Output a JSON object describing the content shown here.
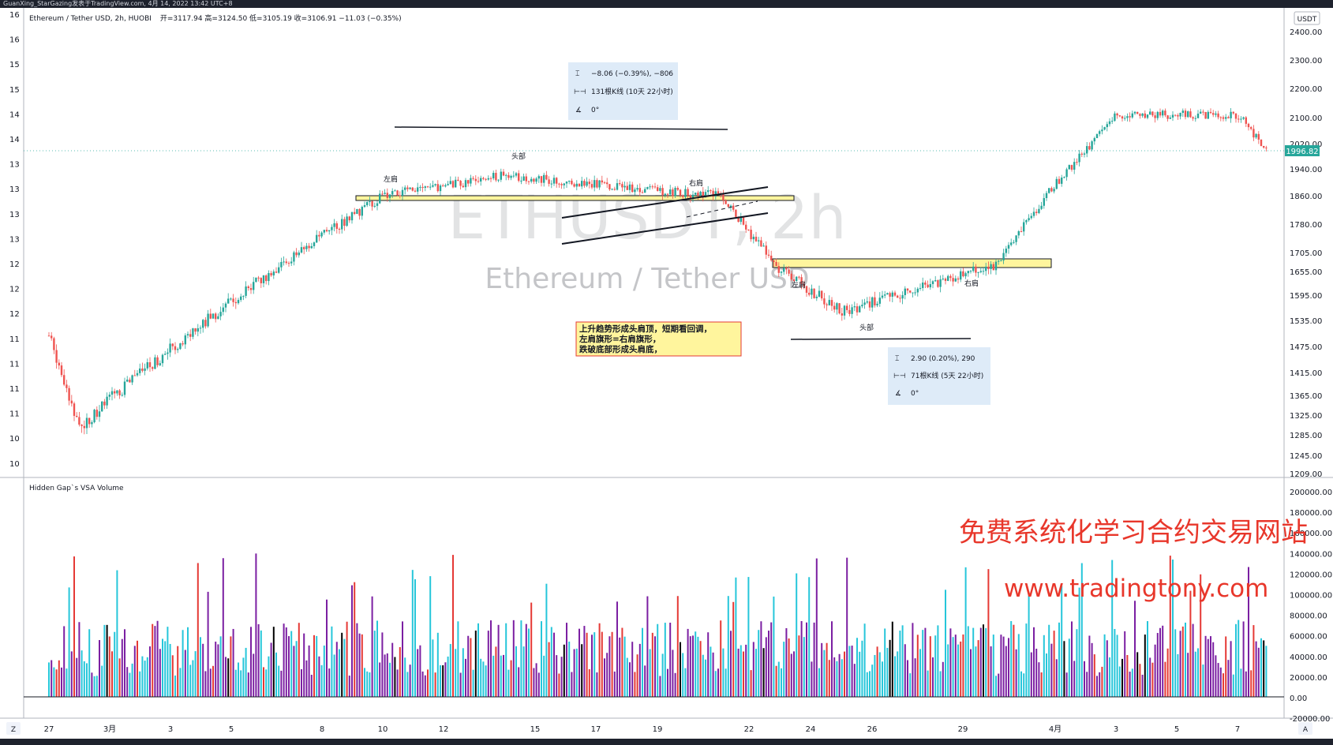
{
  "top_bar": "GuanXing_StarGazing发表于TradingView.com,  4月 14, 2022 13:42 UTC+8",
  "legend": {
    "symbol": "Ethereum / Tether USD, 2h, HUOBI",
    "ohlc": "开=3117.94  高=3124.50  低=3105.19  收=3106.91  −11.03 (−0.35%)"
  },
  "watermark": {
    "line1": "ETHUSDT, 2h",
    "line2": "Ethereum / Tether USD"
  },
  "currency_badge": "USDT",
  "last_price": "1996.82",
  "price_labels": [
    "2400.00",
    "2300.00",
    "2200.00",
    "2100.00",
    "2020.00",
    "1940.00",
    "1860.00",
    "1780.00",
    "1705.00",
    "1655.00",
    "1595.00",
    "1535.00",
    "1475.00",
    "1415.00",
    "1365.00",
    "1325.00",
    "1285.00",
    "1245.00",
    "1209.00"
  ],
  "left_axis_labels": [
    "16",
    "16",
    "15",
    "15",
    "14",
    "14",
    "13",
    "13",
    "13",
    "13",
    "12",
    "12",
    "12",
    "11",
    "11",
    "11",
    "11",
    "10",
    "10"
  ],
  "volume_title": "Hidden Gap`s VSA Volume",
  "volume_labels": [
    "200000.00",
    "180000.00",
    "160000.00",
    "140000.00",
    "120000.00",
    "100000.00",
    "80000.00",
    "60000.00",
    "40000.00",
    "20000.00",
    "0.00",
    "-20000.00"
  ],
  "time_labels": [
    "27",
    "3月",
    "3",
    "5",
    "8",
    "10",
    "12",
    "15",
    "17",
    "19",
    "22",
    "24",
    "26",
    "29",
    "4月",
    "3",
    "5",
    "7"
  ],
  "axis_buttons": [
    "Z",
    "A"
  ],
  "annotations": {
    "left_shoulder_top": "左肩",
    "head_top": "头部",
    "right_shoulder_top": "右肩",
    "left_shoulder_bottom": "左肩",
    "head_bottom": "头部",
    "right_shoulder_bottom": "右肩",
    "note_lines": [
      "上升趋势形成头肩顶，短期看回调，",
      "左肩旗形=右肩旗形，",
      "跌破底部形成头肩底，"
    ]
  },
  "measure_top": {
    "change": "−8.06 (−0.39%), −806",
    "bars": "131根K线 (10天 22小时)",
    "angle": "0°"
  },
  "measure_bottom": {
    "change": "2.90 (0.20%), 290",
    "bars": "71根K线 (5天 22小时)",
    "angle": "0°"
  },
  "promo": {
    "line1": "免费系统化学习合约交易网站",
    "line2": "www.tradingtony.com"
  },
  "colors": {
    "up": "#26a69a",
    "down": "#ef5350",
    "volume_cyan": "#26c6da",
    "volume_purple": "#7b1fa2",
    "volume_red": "#e53935",
    "volume_black": "#000000",
    "zone": "#fff59d",
    "note_bg": "#fff59d",
    "note_border": "#e53935",
    "price_badge": "#26a69a"
  },
  "chart_data": {
    "type": "candlestick",
    "title": "Ethereum / Tether USD, 2h, HUOBI",
    "interval": "2h",
    "ylabel": "USDT",
    "ylim": [
      1209,
      2460
    ],
    "last_price": 1996.82,
    "date_range": [
      "2022-02-26",
      "2022-04-08"
    ],
    "key_points": [
      {
        "label": "start",
        "date": "2022-02-26",
        "price": 1500
      },
      {
        "label": "low",
        "date": "2022-02-28",
        "price": 1300
      },
      {
        "label": "left shoulder (top)",
        "date": "2022-03-10",
        "price": 1860
      },
      {
        "label": "head (top)",
        "date": "2022-03-14",
        "price": 1920
      },
      {
        "label": "right shoulder (top)",
        "date": "2022-03-21",
        "price": 1860
      },
      {
        "label": "left shoulder (bottom)",
        "date": "2022-03-23",
        "price": 1660
      },
      {
        "label": "head (bottom)",
        "date": "2022-03-25",
        "price": 1555
      },
      {
        "label": "right shoulder (bottom)",
        "date": "2022-03-30",
        "price": 1670
      },
      {
        "label": "peak",
        "date": "2022-04-03",
        "price": 2110
      },
      {
        "label": "peak",
        "date": "2022-04-07",
        "price": 2110
      },
      {
        "label": "last",
        "date": "2022-04-08",
        "price": 1996.82
      }
    ],
    "volume_ylim": [
      -20000,
      200000
    ]
  }
}
